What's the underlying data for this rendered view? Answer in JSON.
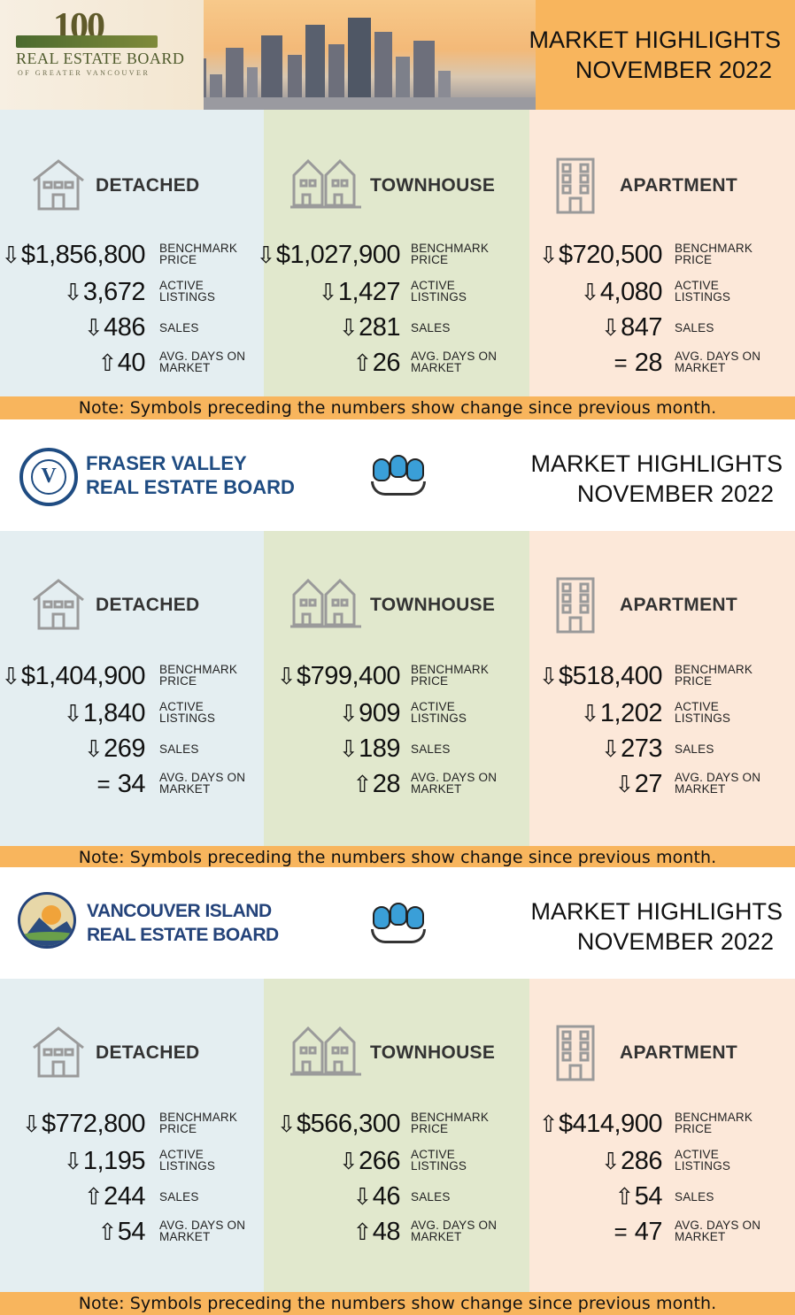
{
  "header_title_line1": "MARKET HIGHLIGHTS",
  "header_title_line2": "NOVEMBER 2022",
  "type_labels": {
    "detached": "DETACHED",
    "townhouse": "TOWNHOUSE",
    "apartment": "APARTMENT"
  },
  "metric_labels": {
    "benchmark_l1": "BENCHMARK",
    "benchmark_l2": "PRICE",
    "listings_l1": "ACTIVE",
    "listings_l2": "LISTINGS",
    "sales": "SALES",
    "days_l1": "AVG. DAYS ON",
    "days_l2": "MARKET"
  },
  "note": "Note: Symbols preceding the numbers show change since previous month.",
  "boards": [
    {
      "logo_text": {
        "number": "100",
        "name": "REAL ESTATE BOARD",
        "sub": "OF GREATER VANCOUVER"
      },
      "detached": {
        "benchmark": {
          "arrow": "⇩",
          "value": "$1,856,800"
        },
        "listings": {
          "arrow": "⇩",
          "value": "3,672"
        },
        "sales": {
          "arrow": "⇩",
          "value": "486"
        },
        "days": {
          "arrow": "⇧",
          "value": "40"
        }
      },
      "townhouse": {
        "benchmark": {
          "arrow": "⇩",
          "value": "$1,027,900"
        },
        "listings": {
          "arrow": "⇩",
          "value": "1,427"
        },
        "sales": {
          "arrow": "⇩",
          "value": "281"
        },
        "days": {
          "arrow": "⇧",
          "value": "26"
        }
      },
      "apartment": {
        "benchmark": {
          "arrow": "⇩",
          "value": "$720,500"
        },
        "listings": {
          "arrow": "⇩",
          "value": "4,080"
        },
        "sales": {
          "arrow": "⇩",
          "value": "847"
        },
        "days": {
          "arrow": "=",
          "value": " 28"
        }
      }
    },
    {
      "logo_text": {
        "line1": "FRASER VALLEY",
        "line2": "REAL ESTATE BOARD"
      },
      "detached": {
        "benchmark": {
          "arrow": "⇩",
          "value": "$1,404,900"
        },
        "listings": {
          "arrow": "⇩",
          "value": "1,840"
        },
        "sales": {
          "arrow": "⇩",
          "value": "269"
        },
        "days": {
          "arrow": "=",
          "value": " 34"
        }
      },
      "townhouse": {
        "benchmark": {
          "arrow": "⇩",
          "value": "$799,400"
        },
        "listings": {
          "arrow": "⇩",
          "value": "909"
        },
        "sales": {
          "arrow": "⇩",
          "value": "189"
        },
        "days": {
          "arrow": "⇧",
          "value": "28"
        }
      },
      "apartment": {
        "benchmark": {
          "arrow": "⇩",
          "value": "$518,400"
        },
        "listings": {
          "arrow": "⇩",
          "value": "1,202"
        },
        "sales": {
          "arrow": "⇩",
          "value": "273"
        },
        "days": {
          "arrow": "⇩",
          "value": "27"
        }
      }
    },
    {
      "logo_text": {
        "line1": "VANCOUVER ISLAND",
        "line2": "REAL ESTATE BOARD"
      },
      "detached": {
        "benchmark": {
          "arrow": "⇩",
          "value": "$772,800"
        },
        "listings": {
          "arrow": "⇩",
          "value": "1,195"
        },
        "sales": {
          "arrow": "⇧",
          "value": "244"
        },
        "days": {
          "arrow": "⇧",
          "value": "54"
        }
      },
      "townhouse": {
        "benchmark": {
          "arrow": "⇩",
          "value": "$566,300"
        },
        "listings": {
          "arrow": "⇩",
          "value": "266"
        },
        "sales": {
          "arrow": "⇩",
          "value": "46"
        },
        "days": {
          "arrow": "⇧",
          "value": "48"
        }
      },
      "apartment": {
        "benchmark": {
          "arrow": "⇧",
          "value": "$414,900"
        },
        "listings": {
          "arrow": "⇩",
          "value": "286"
        },
        "sales": {
          "arrow": "⇧",
          "value": "54"
        },
        "days": {
          "arrow": "=",
          "value": " 47"
        }
      }
    }
  ],
  "colors": {
    "accent_orange": "#f8b55d",
    "detached_bg": "#e4eef1",
    "townhouse_bg": "#e1e8cd",
    "apartment_bg": "#fce8d9",
    "board_blue": "#1f4c82"
  },
  "icons": {
    "detached": "house-icon",
    "townhouse": "townhouse-icon",
    "apartment": "apartment-building-icon"
  }
}
